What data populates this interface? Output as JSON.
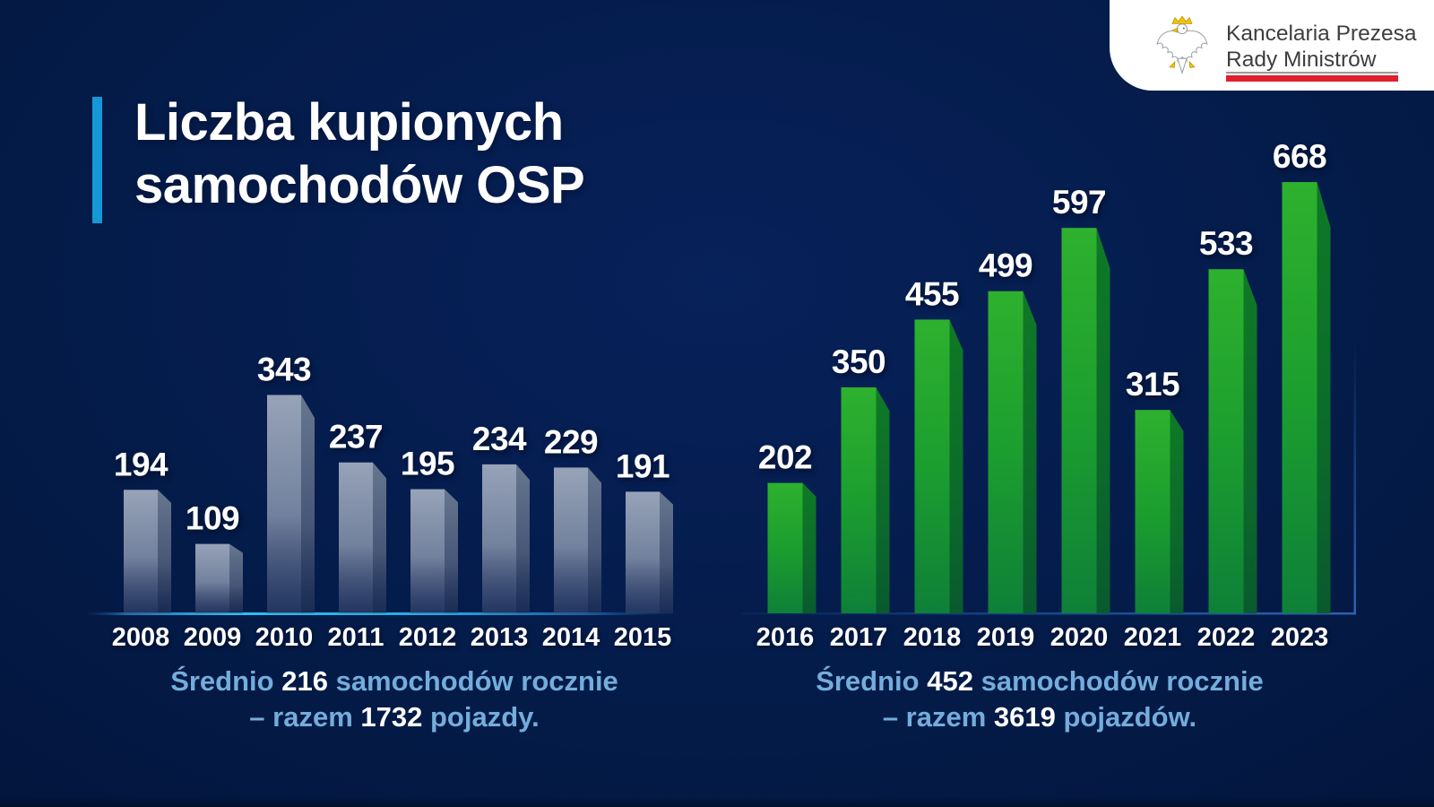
{
  "title": {
    "line1": "Liczba kupionych",
    "line2": "samochodów OSP"
  },
  "logo": {
    "line1": "Kancelaria Prezesa",
    "line2": "Rady Ministrów",
    "eagle_icon": "polish-eagle-icon",
    "red_line_color": "#E0202C"
  },
  "colors": {
    "background": "#041B48",
    "accent_blue": "#1697D6",
    "caption_blue": "#74ADDB",
    "silver_bar": "#8F9CB2",
    "green_bar": "#23A32E",
    "text_white": "#FFFFFF"
  },
  "chart_data": [
    {
      "type": "bar",
      "title": "Liczba kupionych samochodów OSP 2008–2015",
      "categories": [
        "2008",
        "2009",
        "2010",
        "2011",
        "2012",
        "2013",
        "2014",
        "2015"
      ],
      "values": [
        194,
        109,
        343,
        237,
        195,
        234,
        229,
        191
      ],
      "xlabel": "",
      "ylabel": "",
      "ylim": [
        0,
        700
      ],
      "grid": false,
      "legend": false,
      "data_labels": true,
      "bar_color": "#8F9CB2",
      "style": "3d-extruded-silver",
      "summary": {
        "avg_prefix": "Średnio",
        "avg": "216",
        "avg_suffix": "samochodów rocznie",
        "total_prefix": "– razem",
        "total": "1732",
        "total_suffix": "pojazdy."
      }
    },
    {
      "type": "bar",
      "title": "Liczba kupionych samochodów OSP 2016–2023",
      "categories": [
        "2016",
        "2017",
        "2018",
        "2019",
        "2020",
        "2021",
        "2022",
        "2023"
      ],
      "values": [
        202,
        350,
        455,
        499,
        597,
        315,
        533,
        668
      ],
      "xlabel": "",
      "ylabel": "",
      "ylim": [
        0,
        700
      ],
      "grid": false,
      "legend": false,
      "data_labels": true,
      "bar_color": "#23A32E",
      "style": "3d-extruded-green",
      "summary": {
        "avg_prefix": "Średnio",
        "avg": "452",
        "avg_suffix": "samochodów rocznie",
        "total_prefix": "– razem",
        "total": "3619",
        "total_suffix": "pojazdów."
      }
    }
  ]
}
